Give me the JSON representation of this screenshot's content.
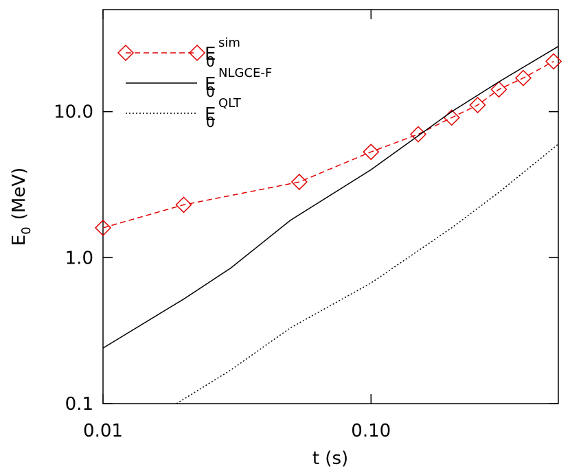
{
  "chart_data": {
    "type": "line",
    "xlabel": "t (s)",
    "ylabel": "E",
    "ylabel_sub": "0",
    "ylabel_unit": "(MeV)",
    "xscale": "log",
    "yscale": "log",
    "xlim": [
      0.01,
      0.5
    ],
    "ylim": [
      0.1,
      50
    ],
    "xticks": [
      0.01,
      {
        "value": 0.1,
        "label": "0.10"
      }
    ],
    "yticks": [
      0.1,
      {
        "value": 1,
        "label": "1.0"
      },
      {
        "value": 10,
        "label": "10.0"
      }
    ],
    "legend": "top-left",
    "series": [
      {
        "name": "E",
        "name_sub": "0",
        "name_sup": "sim",
        "color": "#e00000",
        "style": "dashed",
        "marker": "diamond",
        "x": [
          0.01,
          0.02,
          0.054,
          0.1,
          0.15,
          0.2,
          0.25,
          0.3,
          0.37,
          0.48
        ],
        "values": [
          1.6,
          2.3,
          3.3,
          5.3,
          7.0,
          9.1,
          11.1,
          14.2,
          17.0,
          22.1
        ]
      },
      {
        "name": "E",
        "name_sub": "0",
        "name_sup": "NLGCE-F",
        "color": "#000000",
        "style": "solid",
        "x": [
          0.01,
          0.02,
          0.03,
          0.05,
          0.1,
          0.2,
          0.3,
          0.5
        ],
        "values": [
          0.24,
          0.52,
          0.85,
          1.8,
          4.0,
          10,
          16,
          28
        ]
      },
      {
        "name": "E",
        "name_sub": "0",
        "name_sup": "QLT",
        "color": "#000000",
        "style": "dotted",
        "x": [
          0.0188,
          0.03,
          0.05,
          0.1,
          0.2,
          0.3,
          0.5
        ],
        "values": [
          0.1,
          0.17,
          0.33,
          0.67,
          1.6,
          2.8,
          6.0
        ]
      }
    ]
  }
}
